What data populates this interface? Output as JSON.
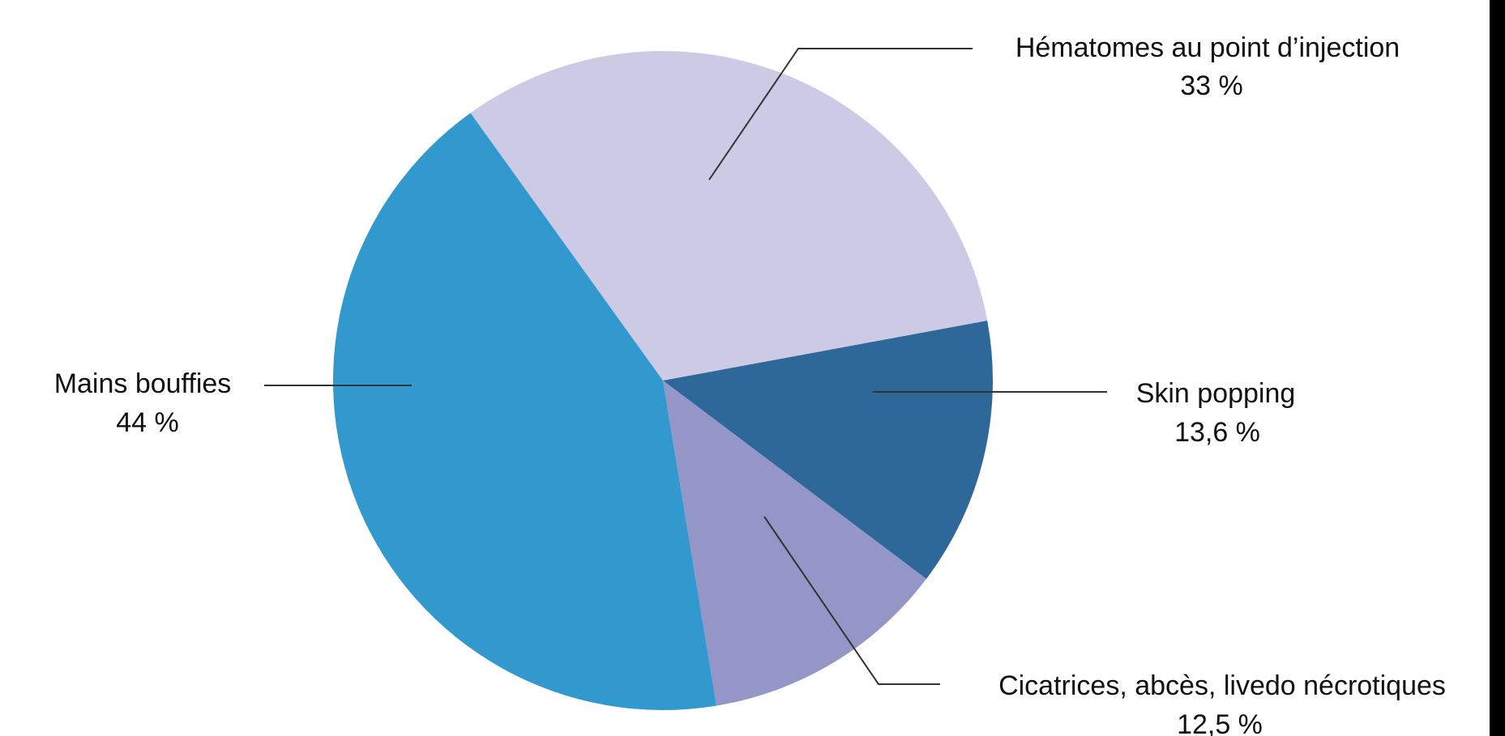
{
  "chart_data": {
    "type": "pie",
    "slices": [
      {
        "label": "Hématomes au point d’injection",
        "value_text": "33 %",
        "value": 33,
        "color": "#cccae5"
      },
      {
        "label": "Skin popping",
        "value_text": "13,6 %",
        "value": 13.6,
        "color": "#2e6899"
      },
      {
        "label": "Cicatrices, abcès, livedo nécrotiques",
        "value_text": "12,5 %",
        "value": 12.5,
        "color": "#9596c8"
      },
      {
        "label": "Mains bouffies",
        "value_text": "44 %",
        "value": 44,
        "color": "#3199ce"
      }
    ],
    "legend": "none",
    "label_placement": "outside with leader lines"
  }
}
